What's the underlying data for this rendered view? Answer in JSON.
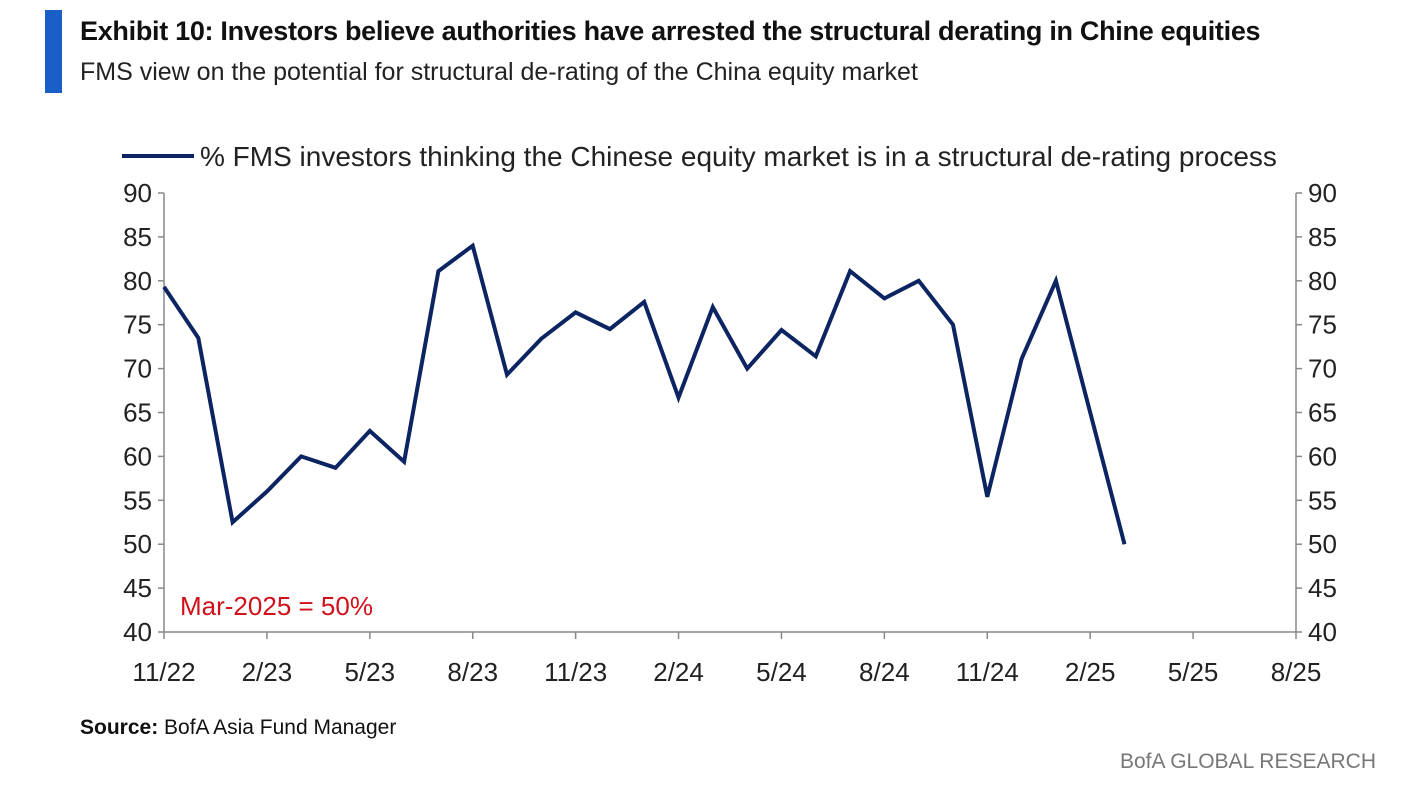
{
  "header": {
    "title": "Exhibit 10: Investors believe authorities have arrested the structural derating in Chine equities",
    "subtitle": "FMS view on the potential for structural de-rating of the China equity market"
  },
  "footer": {
    "source_label": "Source:",
    "source_text": " BofA Asia Fund Manager",
    "brand": "BofA GLOBAL RESEARCH"
  },
  "chart_data": {
    "type": "line",
    "title": "Exhibit 10: Investors believe authorities have arrested the structural derating in Chine equities",
    "legend": "% FMS investors thinking the Chinese equity market is in a structural de-rating process",
    "legend_position": "top",
    "annotation": "Mar-2025 = 50%",
    "x_tick_labels": [
      "11/22",
      "2/23",
      "5/23",
      "8/23",
      "11/23",
      "2/24",
      "5/24",
      "8/24",
      "11/24",
      "2/25",
      "5/25",
      "8/25"
    ],
    "y_ticks": [
      40,
      45,
      50,
      55,
      60,
      65,
      70,
      75,
      80,
      85,
      90
    ],
    "ylim": [
      40,
      90
    ],
    "x_month_range": [
      0,
      33
    ],
    "series": [
      {
        "name": "% FMS investors thinking the Chinese equity market is in a structural de-rating process",
        "color": "#0c2461",
        "x": [
          0,
          1,
          2,
          3,
          4,
          5,
          6,
          7,
          8,
          9,
          10,
          11,
          12,
          13,
          14,
          15,
          16,
          17,
          18,
          19,
          20,
          21,
          22,
          23,
          24,
          25,
          26,
          27,
          28
        ],
        "values": [
          79.3,
          73.5,
          52.5,
          56,
          60,
          58.7,
          62.9,
          59.4,
          81.1,
          84,
          69.3,
          73.4,
          76.4,
          74.5,
          77.6,
          66.7,
          77,
          70,
          74.4,
          71.4,
          81.1,
          78,
          80,
          75,
          55.4,
          71.1,
          80,
          65,
          50
        ]
      }
    ]
  },
  "colors": {
    "line": "#0c2461",
    "accent": "#1a5fc8",
    "annotation": "#d0101a"
  }
}
